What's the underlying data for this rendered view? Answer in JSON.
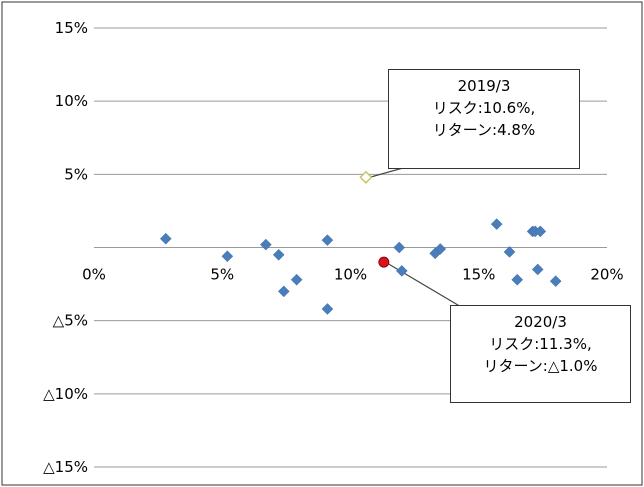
{
  "header_text": "",
  "chart_data": {
    "type": "scatter",
    "title": "",
    "xlabel": "",
    "ylabel": "",
    "xlim": [
      0,
      20
    ],
    "ylim": [
      -15,
      15
    ],
    "x_ticks": [
      "0%",
      "5%",
      "10%",
      "15%",
      "20%"
    ],
    "y_ticks": [
      "15%",
      "10%",
      "5%",
      "",
      "△5%",
      "△10%",
      "△15%"
    ],
    "grid": "horizontal",
    "colors": {
      "point": "#4a7ebb",
      "highlight_2019": "#ffffff",
      "highlight_2019_edge": "#c9c36a",
      "highlight_2020": "#e0101a",
      "grid": "#9a9a9a",
      "frame": "#333333"
    },
    "points": [
      {
        "x": 2.8,
        "y": 0.6
      },
      {
        "x": 5.2,
        "y": -0.6
      },
      {
        "x": 6.7,
        "y": 0.2
      },
      {
        "x": 7.2,
        "y": -0.5
      },
      {
        "x": 7.4,
        "y": -3.0
      },
      {
        "x": 7.9,
        "y": -2.2
      },
      {
        "x": 9.1,
        "y": 0.5
      },
      {
        "x": 9.1,
        "y": -4.2
      },
      {
        "x": 11.9,
        "y": 0.0
      },
      {
        "x": 12.0,
        "y": -1.6
      },
      {
        "x": 13.3,
        "y": -0.4
      },
      {
        "x": 13.5,
        "y": -0.1
      },
      {
        "x": 15.7,
        "y": 1.6
      },
      {
        "x": 16.2,
        "y": -0.3
      },
      {
        "x": 16.5,
        "y": -2.2
      },
      {
        "x": 17.1,
        "y": 1.1
      },
      {
        "x": 17.2,
        "y": 1.1
      },
      {
        "x": 17.3,
        "y": -1.5
      },
      {
        "x": 17.4,
        "y": 1.1
      },
      {
        "x": 18.0,
        "y": -2.3
      }
    ],
    "highlights": [
      {
        "id": "2019",
        "x": 10.6,
        "y": 4.8,
        "label_lines": [
          "2019/3",
          "リスク:10.6%,",
          "リターン:4.8%"
        ]
      },
      {
        "id": "2020",
        "x": 11.3,
        "y": -1.0,
        "label_lines": [
          "2020/3",
          "リスク:11.3%,",
          "リターン:△1.0%"
        ]
      }
    ]
  }
}
